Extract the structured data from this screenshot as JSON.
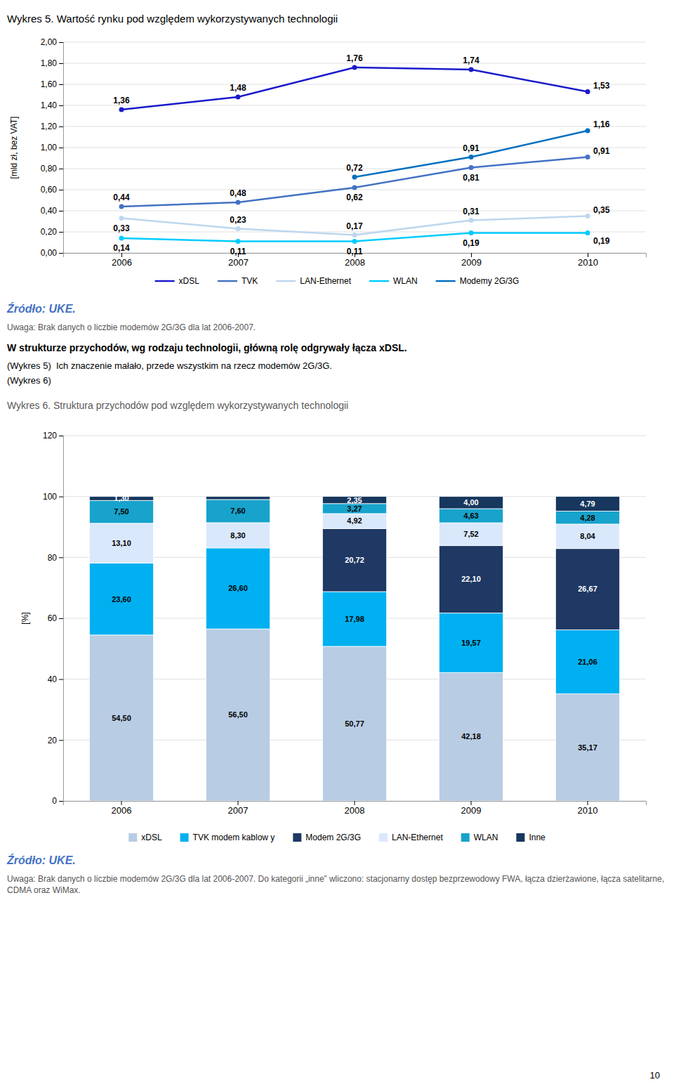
{
  "chart_data": [
    {
      "type": "line",
      "title": "Wykres 5. Wartość rynku pod względem wykorzystywanych technologii",
      "y_label": "[mld zł, bez VAT]",
      "x": [
        2006,
        2007,
        2008,
        2009,
        2010
      ],
      "xlim": [
        2005.5,
        2010.5
      ],
      "xticks": [
        2006,
        2007,
        2008,
        2009,
        2010
      ],
      "ylim": [
        0.0,
        2.0
      ],
      "yticks": [
        {
          "value": 0.0,
          "label": "0,00"
        },
        {
          "value": 0.2,
          "label": "0,20"
        },
        {
          "value": 0.4,
          "label": "0,40"
        },
        {
          "value": 0.6,
          "label": "0,60"
        },
        {
          "value": 0.8,
          "label": "0,80"
        },
        {
          "value": 1.0,
          "label": "1,00"
        },
        {
          "value": 1.2,
          "label": "1,20"
        },
        {
          "value": 1.4,
          "label": "1,40"
        },
        {
          "value": 1.6,
          "label": "1,60"
        },
        {
          "value": 1.8,
          "label": "1,80"
        },
        {
          "value": 2.0,
          "label": "2,00"
        }
      ],
      "grid": true,
      "legend": "bottom",
      "marker": "circle",
      "data_labels": true,
      "series": [
        {
          "name": "xDSL",
          "color": "#1a1acc",
          "values": [
            1.36,
            1.48,
            1.76,
            1.74,
            1.53
          ],
          "value_labels": [
            "1,36",
            "1,48",
            "1,76",
            "1,74",
            "1,53"
          ]
        },
        {
          "name": "TVK",
          "color": "#4472c4",
          "values": [
            0.44,
            0.48,
            0.62,
            0.81,
            0.91
          ],
          "value_labels": [
            "0,44",
            "0,48",
            "0,62",
            "0,81",
            "0,91"
          ]
        },
        {
          "name": "LAN-Ethernet",
          "color": "#bdd7ee",
          "values": [
            0.33,
            0.23,
            0.17,
            0.31,
            0.35
          ],
          "value_labels": [
            "0,33",
            "0,23",
            "0,17",
            "0,31",
            "0,35"
          ]
        },
        {
          "name": "WLAN",
          "color": "#00ccff",
          "values": [
            0.14,
            0.11,
            0.11,
            0.19,
            0.19
          ],
          "value_labels": [
            "0,14",
            "0,11",
            "0,11",
            "0,19",
            "0,19"
          ]
        },
        {
          "name": "Modemy 2G/3G",
          "color": "#0070c0",
          "values": [
            null,
            null,
            0.72,
            0.91,
            1.16
          ],
          "value_labels": [
            null,
            null,
            "0,72",
            "0,91",
            "1,16"
          ]
        }
      ],
      "annotations": [
        "Źródło: UKE.",
        "Uwaga: Brak danych o liczbie modemów 2G/3G dla lat 2006-2007.",
        "W strukturze przychodów, wg rodzaju technologii, główną rolę odgrywały łącza xDSL.",
        "(Wykres 5)  Ich znaczenie małało, przede wszystkim na rzecz modemów 2G/3G.",
        "(Wykres 6)"
      ]
    },
    {
      "type": "bar",
      "title": "Wykres 6. Struktura przychodów pod względem wykorzystywanych technologii",
      "y_label": "[%]",
      "stacked": true,
      "categories": [
        "2006",
        "2007",
        "2008",
        "2009",
        "2010"
      ],
      "ylim": [
        0,
        120
      ],
      "yticks": [
        0,
        20,
        40,
        60,
        80,
        100,
        120
      ],
      "grid": true,
      "legend": "bottom",
      "data_labels": true,
      "series": [
        {
          "name": "xDSL",
          "color": "#b8cce4",
          "values": [
            54.5,
            56.5,
            50.77,
            42.18,
            35.17
          ],
          "value_labels": [
            "54,50",
            "56,50",
            "50,77",
            "42,18",
            "35,17"
          ]
        },
        {
          "name": "TVK modem kablow y",
          "color": "#00b0f0",
          "values": [
            23.6,
            26.6,
            17.98,
            19.57,
            21.06
          ],
          "value_labels": [
            "23,60",
            "26,60",
            "17,98",
            "19,57",
            "21,06"
          ]
        },
        {
          "name": "Modem 2G/3G",
          "color": "#1f3864",
          "values": [
            0.0,
            0.0,
            20.72,
            22.1,
            26.67
          ],
          "value_labels": [
            null,
            null,
            "20,72",
            "22,10",
            "26,67"
          ]
        },
        {
          "name": "LAN-Ethernet",
          "color": "#dae8fc",
          "values": [
            13.1,
            8.3,
            4.92,
            7.52,
            8.04
          ],
          "value_labels": [
            "13,10",
            "8,30",
            "4,92",
            "7,52",
            "8,04"
          ]
        },
        {
          "name": "WLAN",
          "color": "#17a3cc",
          "values": [
            7.5,
            7.6,
            3.27,
            4.63,
            4.28
          ],
          "value_labels": [
            "7,50",
            "7,60",
            "3,27",
            "4,63",
            "4,28"
          ]
        },
        {
          "name": "Inne",
          "color": "#17375e",
          "values": [
            1.3,
            1.0,
            2.35,
            4.0,
            4.79
          ],
          "value_labels": [
            "1,30",
            null,
            "2,35",
            "4,00",
            "4,79"
          ]
        }
      ],
      "annotations": [
        "Źródło: UKE.",
        "Uwaga: Brak danych o liczbie modemów 2G/3G dla lat 2006-2007. Do kategorii „inne” wliczono: stacjonarny dostęp bezprzewodowy FWA, łącza dzierżawione, łącza satelitarne, CDMA oraz WiMax.",
        "10"
      ]
    }
  ]
}
